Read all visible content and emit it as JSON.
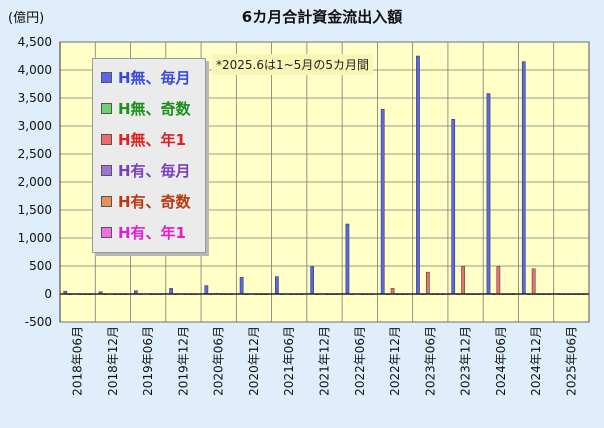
{
  "chart_data": {
    "type": "bar",
    "title": "6カ月合計資金流出入額",
    "unit_label": "(億円)",
    "annotation": "*2025.6は1~5月の5カ月間",
    "ylim": [
      -500,
      4500
    ],
    "yticks": [
      -500,
      0,
      500,
      1000,
      1500,
      2000,
      2500,
      3000,
      3500,
      4000,
      4500
    ],
    "ytick_labels": [
      "-500",
      "0",
      "500",
      "1,000",
      "1,500",
      "2,000",
      "2,500",
      "3,000",
      "3,500",
      "4,000",
      "4,500"
    ],
    "grid": true,
    "legend_position": "top-left",
    "categories": [
      "2018年06月",
      "2018年12月",
      "2019年06月",
      "2019年12月",
      "2020年06月",
      "2020年12月",
      "2021年06月",
      "2021年12月",
      "2022年06月",
      "2022年12月",
      "2023年06月",
      "2023年12月",
      "2024年06月",
      "2024年12月",
      "2025年06月"
    ],
    "series": [
      {
        "name": "H無、毎月",
        "color": "#5a64ec",
        "text_color": "#3a4ae0",
        "values": [
          50,
          40,
          60,
          100,
          150,
          300,
          310,
          490,
          1250,
          3300,
          4250,
          3120,
          3580,
          4150,
          0
        ]
      },
      {
        "name": "H無、奇数",
        "color": "#6fd06f",
        "text_color": "#1b8f1b",
        "values": [
          0,
          0,
          0,
          0,
          0,
          0,
          0,
          0,
          0,
          0,
          0,
          0,
          0,
          0,
          0
        ]
      },
      {
        "name": "H無、年1",
        "color": "#f06c6c",
        "text_color": "#e02020",
        "values": [
          5,
          5,
          5,
          5,
          10,
          5,
          5,
          5,
          5,
          100,
          390,
          490,
          490,
          450,
          0
        ]
      },
      {
        "name": "H有、毎月",
        "color": "#a070d8",
        "text_color": "#7a3fb8",
        "values": [
          0,
          0,
          0,
          0,
          0,
          0,
          0,
          0,
          0,
          0,
          0,
          0,
          0,
          0,
          0
        ]
      },
      {
        "name": "H有、奇数",
        "color": "#e8905a",
        "text_color": "#b83a10",
        "values": [
          0,
          0,
          0,
          0,
          0,
          0,
          0,
          0,
          0,
          0,
          0,
          0,
          0,
          0,
          0
        ]
      },
      {
        "name": "H有、年1",
        "color": "#f070e0",
        "text_color": "#e020d0",
        "values": [
          0,
          0,
          0,
          0,
          0,
          0,
          0,
          0,
          0,
          0,
          0,
          0,
          0,
          0,
          0
        ]
      }
    ],
    "colors": {
      "plot_background": "#ffffc8",
      "page_background": "#dfeefa",
      "grid": "#7a7a7a",
      "zero_line": "#222222"
    }
  }
}
